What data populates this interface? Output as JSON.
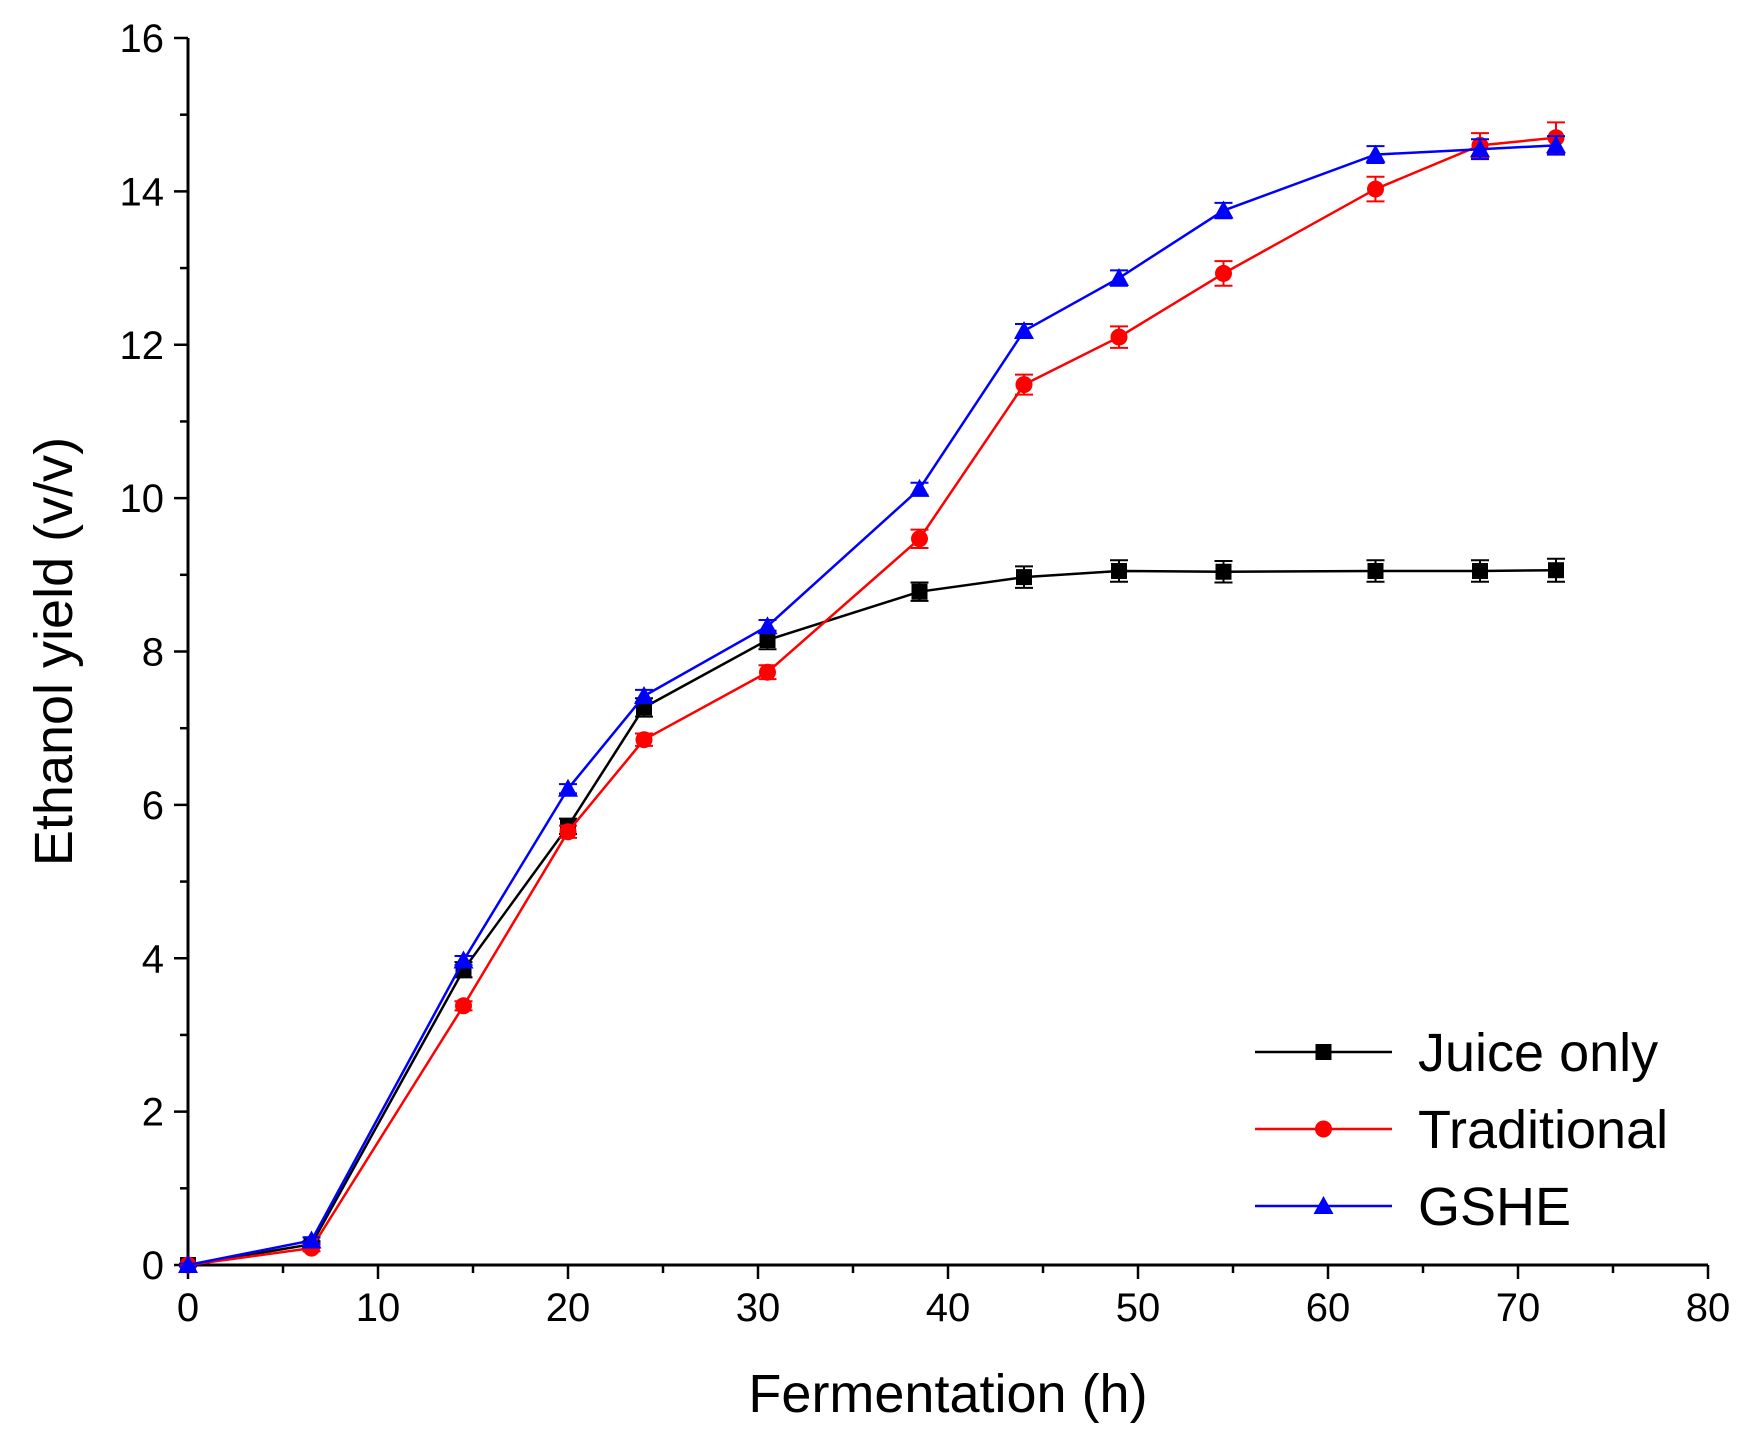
{
  "chart_data": {
    "type": "line",
    "title": "",
    "xlabel": "Fermentation (h)",
    "ylabel": "Ethanol yield (v/v)",
    "xlim": [
      0,
      80
    ],
    "ylim": [
      0,
      16
    ],
    "x_ticks": [
      "0",
      "10",
      "20",
      "30",
      "40",
      "50",
      "60",
      "70",
      "80"
    ],
    "y_ticks": [
      "0",
      "2",
      "4",
      "6",
      "8",
      "10",
      "12",
      "14",
      "16"
    ],
    "grid": false,
    "legend_position": "bottom-right",
    "x": [
      0,
      6.5,
      14.5,
      20,
      24,
      30.5,
      38.5,
      44,
      49,
      54.5,
      62.5,
      68,
      72
    ],
    "series": [
      {
        "name": "Juice only",
        "color": "#000000",
        "marker": "square",
        "values": [
          0,
          0.27,
          3.85,
          5.72,
          7.27,
          8.15,
          8.78,
          8.97,
          9.05,
          9.04,
          9.05,
          9.05,
          9.06
        ],
        "errors": [
          0.02,
          0.04,
          0.1,
          0.1,
          0.12,
          0.12,
          0.12,
          0.14,
          0.14,
          0.14,
          0.14,
          0.14,
          0.15
        ]
      },
      {
        "name": "Traditional",
        "color": "#ff0000",
        "marker": "circle",
        "values": [
          0,
          0.22,
          3.38,
          5.65,
          6.85,
          7.73,
          9.47,
          11.48,
          12.1,
          12.93,
          14.03,
          14.6,
          14.7
        ],
        "errors": [
          0.02,
          0.04,
          0.06,
          0.08,
          0.08,
          0.09,
          0.12,
          0.13,
          0.14,
          0.16,
          0.16,
          0.16,
          0.2
        ]
      },
      {
        "name": "GSHE",
        "color": "#0000ff",
        "marker": "triangle",
        "values": [
          0,
          0.32,
          3.97,
          6.21,
          7.42,
          8.33,
          10.12,
          12.18,
          12.87,
          13.75,
          14.48,
          14.55,
          14.6
        ],
        "errors": [
          0.02,
          0.04,
          0.06,
          0.06,
          0.08,
          0.08,
          0.08,
          0.09,
          0.1,
          0.1,
          0.11,
          0.13,
          0.12
        ]
      }
    ]
  }
}
